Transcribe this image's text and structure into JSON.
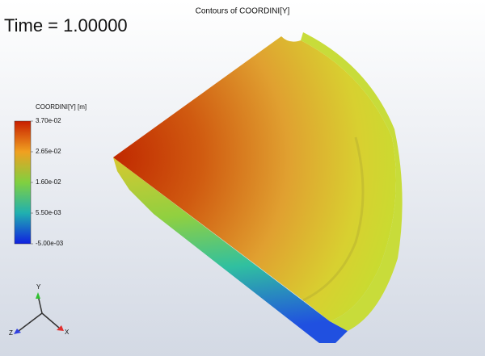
{
  "title": "Contours of COORDINI[Y]",
  "time_label": "Time = 1.00000",
  "colorbar": {
    "title": "COORDINI[Y] [m]",
    "range": [
      -0.005,
      0.037
    ],
    "ticks": [
      {
        "value": 0.037,
        "label": "3.70e-02"
      },
      {
        "value": 0.0265,
        "label": "2.65e-02"
      },
      {
        "value": 0.016,
        "label": "1.60e-02"
      },
      {
        "value": 0.0055,
        "label": "5.50e-03"
      },
      {
        "value": -0.005,
        "label": "-5.00e-03"
      }
    ]
  },
  "triad": {
    "x": "X",
    "y": "Y",
    "z": "Z"
  }
}
